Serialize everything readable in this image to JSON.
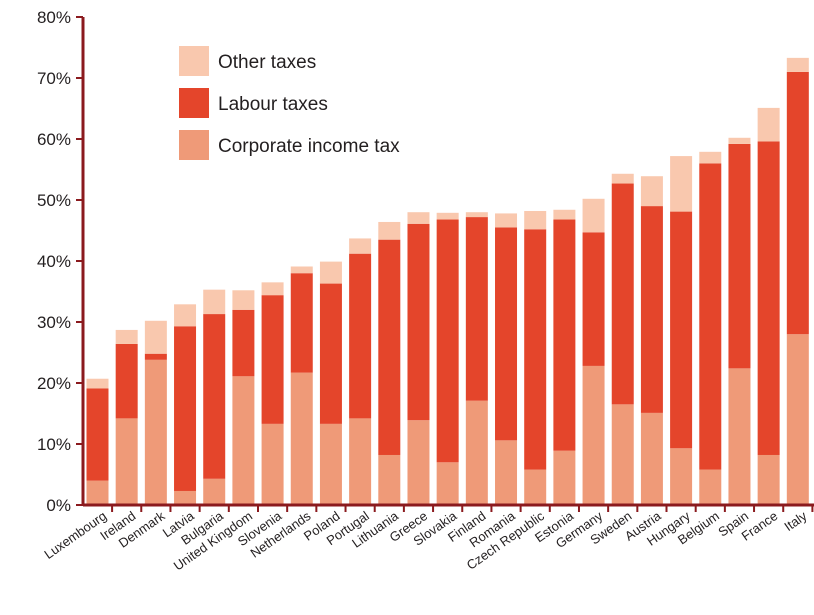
{
  "colors": {
    "other": "#f9c8ae",
    "labour": "#e4452b",
    "corporate": "#ef9a78",
    "axis": "#8b1a1e",
    "text": "#231f20"
  },
  "chart_data": {
    "type": "bar",
    "stacked": true,
    "title": "",
    "xlabel": "",
    "ylabel": "",
    "ylim": [
      0,
      80
    ],
    "yticks": [
      "0%",
      "10%",
      "20%",
      "30%",
      "40%",
      "50%",
      "60%",
      "70%",
      "80%"
    ],
    "legend_position": "top-left",
    "categories": [
      "Luxembourg",
      "Ireland",
      "Denmark",
      "Latvia",
      "Bulgaria",
      "United Kingdom",
      "Slovenia",
      "Netherlands",
      "Poland",
      "Portugal",
      "Lithuania",
      "Greece",
      "Slovakia",
      "Finland",
      "Romania",
      "Czech Republic",
      "Estonia",
      "Germany",
      "Sweden",
      "Austria",
      "Hungary",
      "Belgium",
      "Spain",
      "France",
      "Italy"
    ],
    "series": [
      {
        "name": "Corporate income tax",
        "color_key": "corporate",
        "values": [
          4.0,
          14.2,
          23.8,
          2.3,
          4.3,
          21.1,
          13.3,
          21.7,
          13.3,
          14.2,
          8.2,
          13.9,
          7.0,
          17.1,
          10.6,
          5.8,
          8.9,
          22.8,
          16.5,
          15.1,
          9.3,
          5.8,
          22.4,
          8.2,
          28.0
        ]
      },
      {
        "name": "Labour taxes",
        "color_key": "labour",
        "values": [
          15.1,
          12.2,
          1.0,
          27.0,
          27.0,
          10.9,
          21.1,
          16.3,
          23.0,
          27.0,
          35.3,
          32.2,
          39.8,
          30.1,
          34.9,
          39.4,
          37.9,
          21.9,
          36.2,
          33.9,
          38.8,
          50.2,
          36.8,
          51.4,
          43.0
        ]
      },
      {
        "name": "Other taxes",
        "color_key": "other",
        "values": [
          1.6,
          2.3,
          5.4,
          3.6,
          4.0,
          3.2,
          2.1,
          1.1,
          3.6,
          2.5,
          2.9,
          1.9,
          1.1,
          0.8,
          2.3,
          3.0,
          1.6,
          5.5,
          1.6,
          4.9,
          9.1,
          1.9,
          1.0,
          5.5,
          2.3
        ]
      }
    ]
  }
}
